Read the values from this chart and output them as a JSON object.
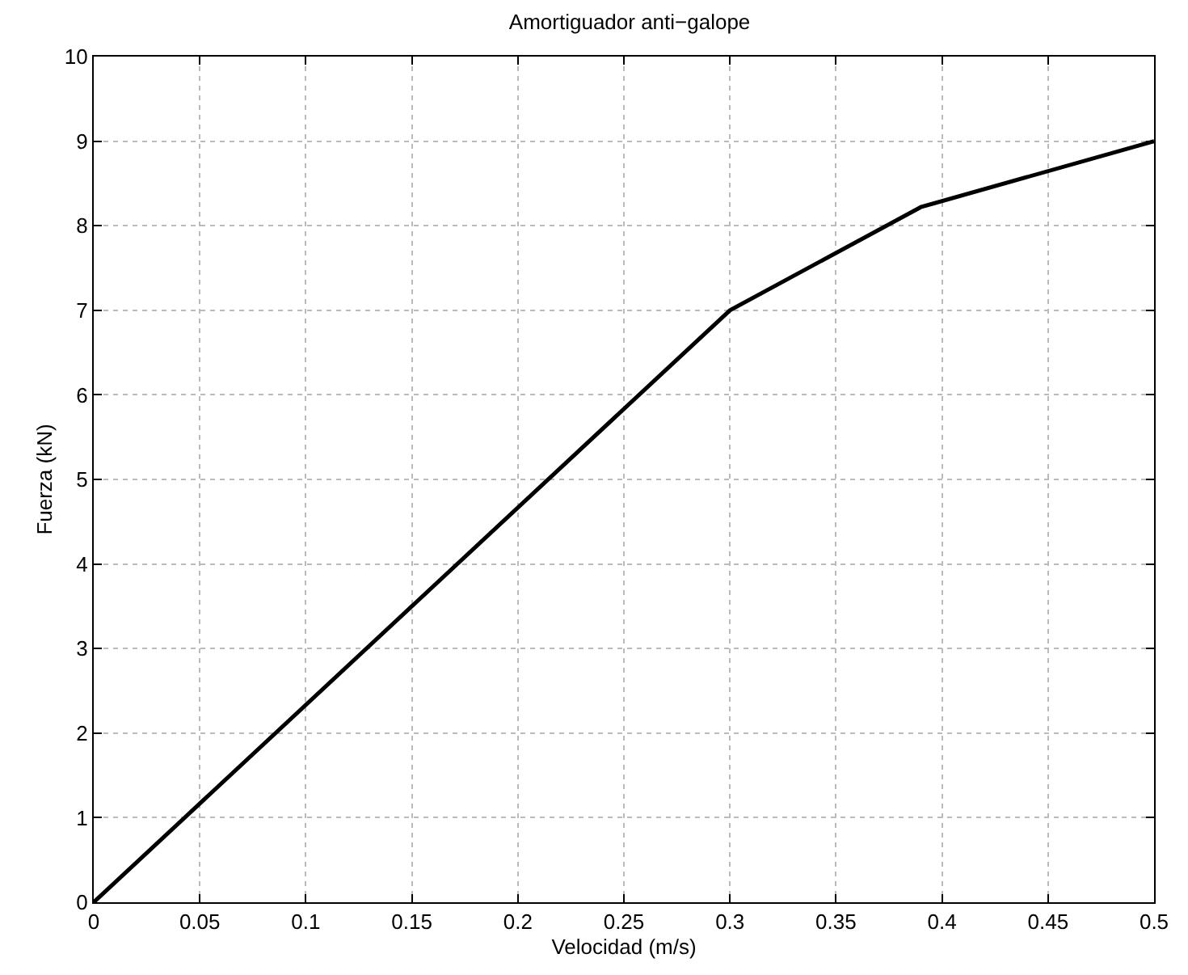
{
  "chart_data": {
    "type": "line",
    "title": "Amortiguador anti−galope",
    "xlabel": "Velocidad (m/s)",
    "ylabel": "Fuerza (kN)",
    "x": [
      0,
      0.3,
      0.39,
      0.5
    ],
    "series": [
      {
        "color": "#000000",
        "values": [
          0,
          7,
          8.22,
          9
        ]
      }
    ],
    "xlim": [
      0,
      0.5
    ],
    "xticks": [
      0,
      0.05,
      0.1,
      0.15,
      0.2,
      0.25,
      0.3,
      0.35,
      0.4,
      0.45,
      0.5
    ],
    "ylim": [
      0,
      10
    ],
    "yticks": [
      0,
      1,
      2,
      3,
      4,
      5,
      6,
      7,
      8,
      9,
      10
    ],
    "grid": true,
    "marker": "none",
    "line_style": "solid"
  }
}
